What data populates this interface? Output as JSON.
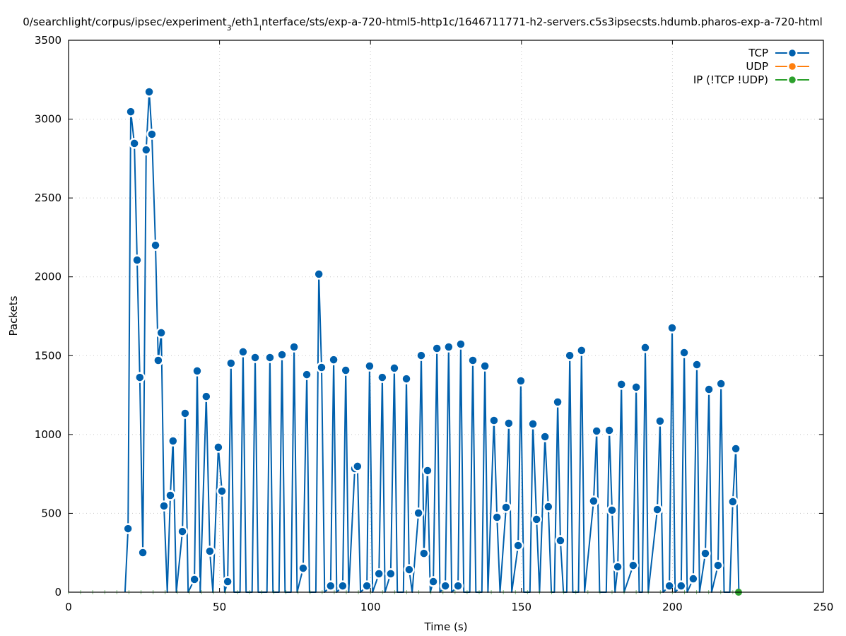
{
  "chart_data": {
    "type": "line",
    "title": "0/searchlight/corpus/ipsec/experiment_3/eth1_interface/sts/exp-a-720-html5-http1c/1646711771-h2-servers.c5s3ipsecsts.hdumb.pharos-exp-a-720-html",
    "xlabel": "Time (s)",
    "ylabel": "Packets",
    "xlim": [
      0,
      250
    ],
    "ylim": [
      0,
      3500
    ],
    "xticks": [
      0,
      50,
      100,
      150,
      200,
      250
    ],
    "yticks": [
      0,
      500,
      1000,
      1500,
      2000,
      2500,
      3000,
      3500
    ],
    "grid": true,
    "legend_position": "top-right",
    "series": [
      {
        "name": "TCP",
        "color": "#0060ad",
        "points": [
          [
            18.7,
            0
          ],
          [
            19.7,
            403
          ],
          [
            20.6,
            3047
          ],
          [
            21.8,
            2846
          ],
          [
            22.7,
            2106
          ],
          [
            23.6,
            1362
          ],
          [
            24.6,
            251
          ],
          [
            25.7,
            2805
          ],
          [
            26.7,
            3173
          ],
          [
            27.6,
            2904
          ],
          [
            28.8,
            2200
          ],
          [
            29.7,
            1470
          ],
          [
            30.7,
            1645
          ],
          [
            31.6,
            547
          ],
          [
            32.7,
            0
          ],
          [
            33.7,
            614
          ],
          [
            34.6,
            959
          ],
          [
            35.7,
            0
          ],
          [
            37.7,
            385
          ],
          [
            38.6,
            1134
          ],
          [
            39.6,
            0
          ],
          [
            41.7,
            81
          ],
          [
            42.6,
            1403
          ],
          [
            43.6,
            0
          ],
          [
            45.6,
            1241
          ],
          [
            46.8,
            260
          ],
          [
            47.8,
            0
          ],
          [
            49.6,
            919
          ],
          [
            50.8,
            641
          ],
          [
            51.7,
            0
          ],
          [
            52.7,
            67
          ],
          [
            53.8,
            1452
          ],
          [
            54.8,
            0
          ],
          [
            56.8,
            0
          ],
          [
            57.8,
            1524
          ],
          [
            58.8,
            0
          ],
          [
            60.8,
            0
          ],
          [
            61.8,
            1488
          ],
          [
            62.8,
            0
          ],
          [
            65.7,
            0
          ],
          [
            66.7,
            1488
          ],
          [
            67.7,
            0
          ],
          [
            69.7,
            0
          ],
          [
            70.7,
            1506
          ],
          [
            71.7,
            0
          ],
          [
            73.7,
            0
          ],
          [
            74.7,
            1555
          ],
          [
            75.7,
            0
          ],
          [
            77.7,
            152
          ],
          [
            78.9,
            1380
          ],
          [
            79.8,
            0
          ],
          [
            81.9,
            0
          ],
          [
            82.9,
            2017
          ],
          [
            83.8,
            1425
          ],
          [
            84.8,
            0
          ],
          [
            86.8,
            40
          ],
          [
            87.8,
            1474
          ],
          [
            88.8,
            0
          ],
          [
            90.8,
            40
          ],
          [
            91.8,
            1407
          ],
          [
            92.8,
            0
          ],
          [
            94.8,
            784
          ],
          [
            95.7,
            798
          ],
          [
            96.7,
            0
          ],
          [
            98.8,
            40
          ],
          [
            99.7,
            1434
          ],
          [
            100.7,
            0
          ],
          [
            102.8,
            117
          ],
          [
            103.9,
            1362
          ],
          [
            104.8,
            0
          ],
          [
            106.7,
            117
          ],
          [
            107.9,
            1421
          ],
          [
            108.9,
            0
          ],
          [
            110.9,
            0
          ],
          [
            111.9,
            1353
          ],
          [
            112.8,
            143
          ],
          [
            113.8,
            0
          ],
          [
            115.9,
            502
          ],
          [
            116.8,
            1501
          ],
          [
            117.7,
            246
          ],
          [
            118.9,
            771
          ],
          [
            119.8,
            0
          ],
          [
            120.8,
            67
          ],
          [
            122.0,
            1546
          ],
          [
            123.0,
            0
          ],
          [
            124.8,
            40
          ],
          [
            125.9,
            1555
          ],
          [
            126.9,
            0
          ],
          [
            129.0,
            40
          ],
          [
            129.9,
            1573
          ],
          [
            130.9,
            0
          ],
          [
            132.9,
            0
          ],
          [
            133.9,
            1470
          ],
          [
            134.9,
            0
          ],
          [
            136.9,
            0
          ],
          [
            137.9,
            1434
          ],
          [
            138.9,
            0
          ],
          [
            140.9,
            1089
          ],
          [
            141.9,
            475
          ],
          [
            142.9,
            0
          ],
          [
            144.9,
            538
          ],
          [
            145.8,
            1071
          ],
          [
            146.8,
            0
          ],
          [
            148.9,
            296
          ],
          [
            149.8,
            1340
          ],
          [
            150.8,
            0
          ],
          [
            152.8,
            0
          ],
          [
            153.8,
            1067
          ],
          [
            155.0,
            462
          ],
          [
            156.0,
            0
          ],
          [
            157.8,
            986
          ],
          [
            158.9,
            542
          ],
          [
            159.9,
            0
          ],
          [
            160.9,
            0
          ],
          [
            162.0,
            1206
          ],
          [
            162.9,
            327
          ],
          [
            163.9,
            0
          ],
          [
            165.0,
            0
          ],
          [
            166.0,
            1501
          ],
          [
            167.0,
            0
          ],
          [
            168.9,
            0
          ],
          [
            169.9,
            1533
          ],
          [
            170.9,
            0
          ],
          [
            173.9,
            578
          ],
          [
            174.9,
            1022
          ],
          [
            175.9,
            0
          ],
          [
            178.1,
            0
          ],
          [
            179.1,
            1026
          ],
          [
            180.0,
            520
          ],
          [
            181.0,
            0
          ],
          [
            181.9,
            161
          ],
          [
            183.1,
            1318
          ],
          [
            184.0,
            0
          ],
          [
            187.0,
            170
          ],
          [
            188.0,
            1300
          ],
          [
            189.0,
            0
          ],
          [
            190.0,
            0
          ],
          [
            191.0,
            1551
          ],
          [
            192.0,
            0
          ],
          [
            195.0,
            524
          ],
          [
            195.9,
            1085
          ],
          [
            196.9,
            0
          ],
          [
            199.0,
            40
          ],
          [
            199.9,
            1676
          ],
          [
            200.9,
            0
          ],
          [
            202.9,
            40
          ],
          [
            203.9,
            1519
          ],
          [
            204.9,
            0
          ],
          [
            206.9,
            85
          ],
          [
            208.1,
            1443
          ],
          [
            209.0,
            0
          ],
          [
            210.9,
            246
          ],
          [
            212.1,
            1286
          ],
          [
            213.0,
            0
          ],
          [
            215.1,
            170
          ],
          [
            216.1,
            1322
          ],
          [
            217.1,
            0
          ],
          [
            219.0,
            0
          ],
          [
            220.0,
            574
          ],
          [
            221.0,
            910
          ],
          [
            222.0,
            0
          ]
        ]
      },
      {
        "name": "UDP",
        "color": "#ff7f0e",
        "points": []
      },
      {
        "name": "IP (!TCP  !UDP)",
        "color": "#2ca02c",
        "points": [
          [
            0,
            0
          ],
          [
            4,
            0
          ],
          [
            8,
            0
          ],
          [
            12,
            0
          ],
          [
            16,
            0
          ],
          [
            20,
            0
          ],
          [
            24,
            0
          ],
          [
            28,
            0
          ],
          [
            32,
            0
          ],
          [
            36,
            0
          ],
          [
            40,
            0
          ],
          [
            44,
            0
          ],
          [
            48,
            0
          ],
          [
            52,
            0
          ],
          [
            56,
            0
          ],
          [
            60,
            0
          ],
          [
            64,
            0
          ],
          [
            68,
            0
          ],
          [
            72,
            0
          ],
          [
            76,
            0
          ],
          [
            80,
            0
          ],
          [
            84,
            0
          ],
          [
            88,
            0
          ],
          [
            92,
            0
          ],
          [
            96,
            0
          ],
          [
            100,
            0
          ],
          [
            104,
            0
          ],
          [
            108,
            0
          ],
          [
            112,
            0
          ],
          [
            116,
            0
          ],
          [
            120,
            0
          ],
          [
            124,
            0
          ],
          [
            128,
            0
          ],
          [
            132,
            0
          ],
          [
            136,
            0
          ],
          [
            140,
            0
          ],
          [
            144,
            0
          ],
          [
            148,
            0
          ],
          [
            152,
            0
          ],
          [
            156,
            0
          ],
          [
            160,
            0
          ],
          [
            164,
            0
          ],
          [
            168,
            0
          ],
          [
            172,
            0
          ],
          [
            176,
            0
          ],
          [
            180,
            0
          ],
          [
            184,
            0
          ],
          [
            188,
            0
          ],
          [
            192,
            0
          ],
          [
            196,
            0
          ],
          [
            200,
            0
          ],
          [
            204,
            0
          ],
          [
            208,
            0
          ],
          [
            212,
            0
          ],
          [
            216,
            0
          ],
          [
            220,
            0
          ],
          [
            221.9,
            0
          ]
        ]
      }
    ]
  }
}
